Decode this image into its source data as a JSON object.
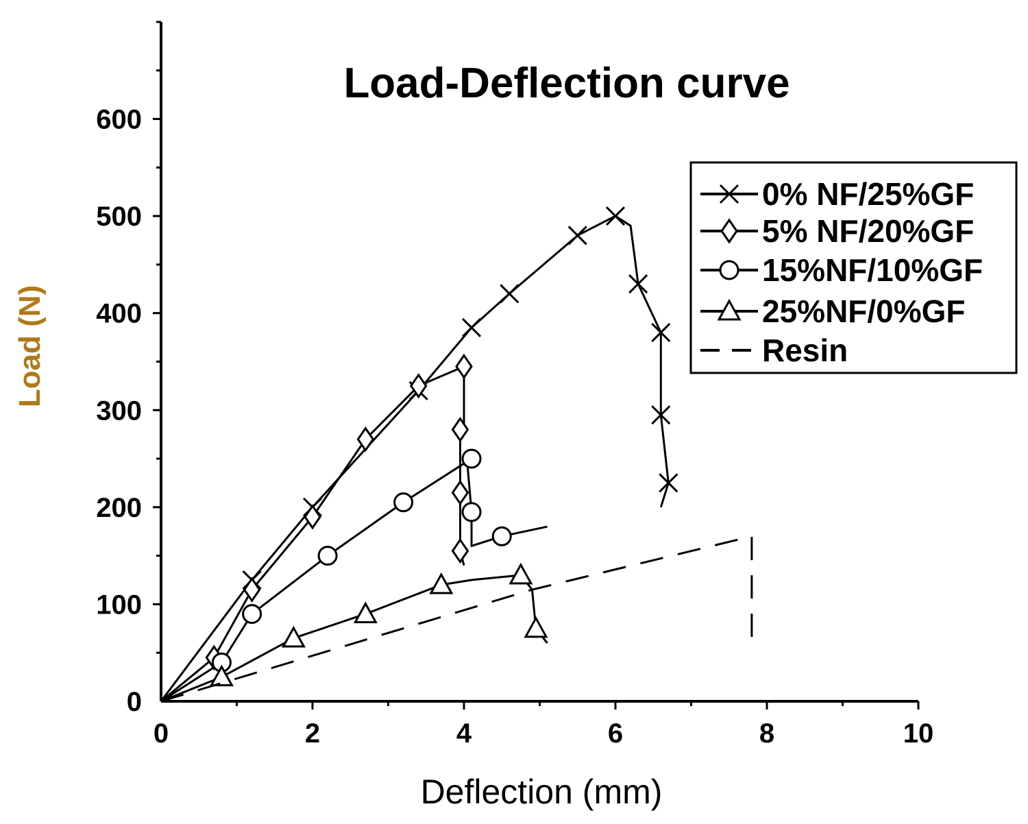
{
  "chart_data": {
    "type": "line",
    "title": "Load-Deflection curve",
    "xlabel": "Deflection (mm)",
    "ylabel": "Load (N)",
    "xlim": [
      0,
      10
    ],
    "ylim": [
      0,
      700
    ],
    "xticks": [
      0,
      2,
      4,
      6,
      8,
      10
    ],
    "yticks": [
      0,
      100,
      200,
      300,
      400,
      500,
      600
    ],
    "xtick_labels": [
      "0",
      "2",
      "4",
      "6",
      "8",
      "10"
    ],
    "ytick_labels": [
      "0",
      "100",
      "200",
      "300",
      "400",
      "500",
      "600"
    ],
    "grid": false,
    "legend_position": "right",
    "colors": {
      "axis": "#000000",
      "ylabel": "#b07a1a",
      "series": "#000000"
    },
    "series": [
      {
        "name": "0% NF/25%GF",
        "marker": "x",
        "line": "solid",
        "x": [
          0,
          1.2,
          2.0,
          3.4,
          4.1,
          4.6,
          5.5,
          6.0,
          6.2,
          6.3,
          6.6,
          6.6,
          6.7,
          6.6
        ],
        "y": [
          0,
          125,
          200,
          320,
          385,
          420,
          480,
          500,
          490,
          430,
          380,
          295,
          225,
          200
        ],
        "marker_indices": [
          1,
          2,
          3,
          4,
          5,
          6,
          7,
          9,
          10,
          11,
          12
        ]
      },
      {
        "name": "5% NF/20%GF",
        "marker": "diamond",
        "line": "solid",
        "x": [
          0,
          0.7,
          1.2,
          2.0,
          2.7,
          3.4,
          4.0,
          4.0,
          3.95,
          3.95,
          3.95,
          4.0
        ],
        "y": [
          0,
          45,
          115,
          190,
          270,
          325,
          345,
          280,
          280,
          215,
          155,
          140
        ],
        "marker_indices": [
          1,
          2,
          3,
          4,
          5,
          6,
          8,
          9,
          10
        ]
      },
      {
        "name": "15%NF/10%GF",
        "marker": "circle",
        "line": "solid",
        "x": [
          0,
          0.8,
          1.2,
          2.2,
          3.2,
          4.1,
          4.05,
          4.1,
          4.1,
          4.5,
          5.1
        ],
        "y": [
          0,
          40,
          90,
          150,
          205,
          250,
          240,
          195,
          160,
          170,
          180
        ],
        "marker_indices": [
          1,
          2,
          3,
          4,
          5,
          7,
          9
        ]
      },
      {
        "name": "25%NF/0%GF",
        "marker": "triangle",
        "line": "solid",
        "x": [
          0,
          0.8,
          1.75,
          2.7,
          3.7,
          4.1,
          4.75,
          4.9,
          4.95,
          5.1
        ],
        "y": [
          0,
          25,
          65,
          90,
          120,
          125,
          130,
          115,
          75,
          60
        ],
        "marker_indices": [
          1,
          2,
          3,
          4,
          6,
          8
        ]
      },
      {
        "name": "Resin",
        "marker": "none",
        "line": "dashed",
        "x": [
          0,
          4.9,
          7.8,
          7.8
        ],
        "y": [
          0,
          115,
          170,
          55
        ],
        "marker_indices": []
      }
    ]
  }
}
